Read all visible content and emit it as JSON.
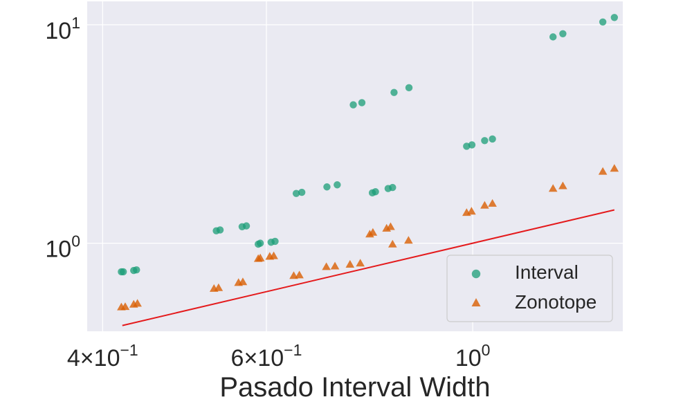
{
  "chart_data": {
    "type": "scatter",
    "xlabel": "Pasado Interval Width",
    "ylabel": "",
    "xscale": "log",
    "yscale": "log",
    "xlim": [
      0.385,
      1.45
    ],
    "ylim": [
      0.395,
      12.8
    ],
    "grid": true,
    "background": "#eaeaf2",
    "legend_position": "lower-right",
    "x_ticks": [
      {
        "value": 0.4,
        "mantissa": "4×10",
        "exponent": "−1"
      },
      {
        "value": 0.6,
        "mantissa": "6×10",
        "exponent": "−1"
      },
      {
        "value": 1.0,
        "mantissa": "10",
        "exponent": "0"
      }
    ],
    "y_ticks": [
      {
        "value": 1.0,
        "mantissa": "10",
        "exponent": "0"
      },
      {
        "value": 10.0,
        "mantissa": "10",
        "exponent": "1"
      }
    ],
    "series": [
      {
        "name": "Interval",
        "marker": "circle",
        "color": "#1b9e77",
        "points": [
          [
            0.419,
            0.74
          ],
          [
            0.421,
            0.74
          ],
          [
            0.432,
            0.75
          ],
          [
            0.435,
            0.755
          ],
          [
            0.53,
            1.14
          ],
          [
            0.535,
            1.15
          ],
          [
            0.565,
            1.19
          ],
          [
            0.571,
            1.2
          ],
          [
            0.588,
            0.99
          ],
          [
            0.591,
            1.0
          ],
          [
            0.607,
            1.01
          ],
          [
            0.613,
            1.02
          ],
          [
            0.646,
            1.69
          ],
          [
            0.655,
            1.71
          ],
          [
            0.697,
            1.81
          ],
          [
            0.715,
            1.85
          ],
          [
            0.744,
            4.3
          ],
          [
            0.76,
            4.4
          ],
          [
            0.78,
            1.7
          ],
          [
            0.786,
            1.72
          ],
          [
            0.811,
            1.78
          ],
          [
            0.82,
            1.8
          ],
          [
            0.823,
            4.9
          ],
          [
            0.854,
            5.15
          ],
          [
            0.985,
            2.78
          ],
          [
            0.998,
            2.82
          ],
          [
            1.03,
            2.95
          ],
          [
            1.05,
            3.0
          ],
          [
            1.22,
            8.8
          ],
          [
            1.25,
            9.1
          ],
          [
            1.38,
            10.3
          ],
          [
            1.42,
            10.8
          ]
        ]
      },
      {
        "name": "Zonotope",
        "marker": "triangle",
        "color": "#d95f02",
        "points": [
          [
            0.419,
            0.51
          ],
          [
            0.423,
            0.512
          ],
          [
            0.432,
            0.525
          ],
          [
            0.436,
            0.53
          ],
          [
            0.527,
            0.62
          ],
          [
            0.533,
            0.625
          ],
          [
            0.56,
            0.66
          ],
          [
            0.566,
            0.665
          ],
          [
            0.588,
            0.85
          ],
          [
            0.591,
            0.855
          ],
          [
            0.605,
            0.87
          ],
          [
            0.611,
            0.875
          ],
          [
            0.642,
            0.71
          ],
          [
            0.651,
            0.715
          ],
          [
            0.696,
            0.78
          ],
          [
            0.711,
            0.785
          ],
          [
            0.738,
            0.8
          ],
          [
            0.757,
            0.81
          ],
          [
            0.775,
            1.1
          ],
          [
            0.781,
            1.12
          ],
          [
            0.808,
            1.17
          ],
          [
            0.816,
            1.19
          ],
          [
            0.82,
            0.99
          ],
          [
            0.853,
            1.03
          ],
          [
            0.985,
            1.38
          ],
          [
            0.997,
            1.4
          ],
          [
            1.03,
            1.49
          ],
          [
            1.05,
            1.52
          ],
          [
            1.22,
            1.78
          ],
          [
            1.25,
            1.83
          ],
          [
            1.38,
            2.13
          ],
          [
            1.42,
            2.2
          ]
        ]
      }
    ],
    "reference_line": {
      "color": "#e41a1c",
      "points": [
        [
          0.42,
          0.42
        ],
        [
          1.42,
          1.42
        ]
      ]
    }
  }
}
